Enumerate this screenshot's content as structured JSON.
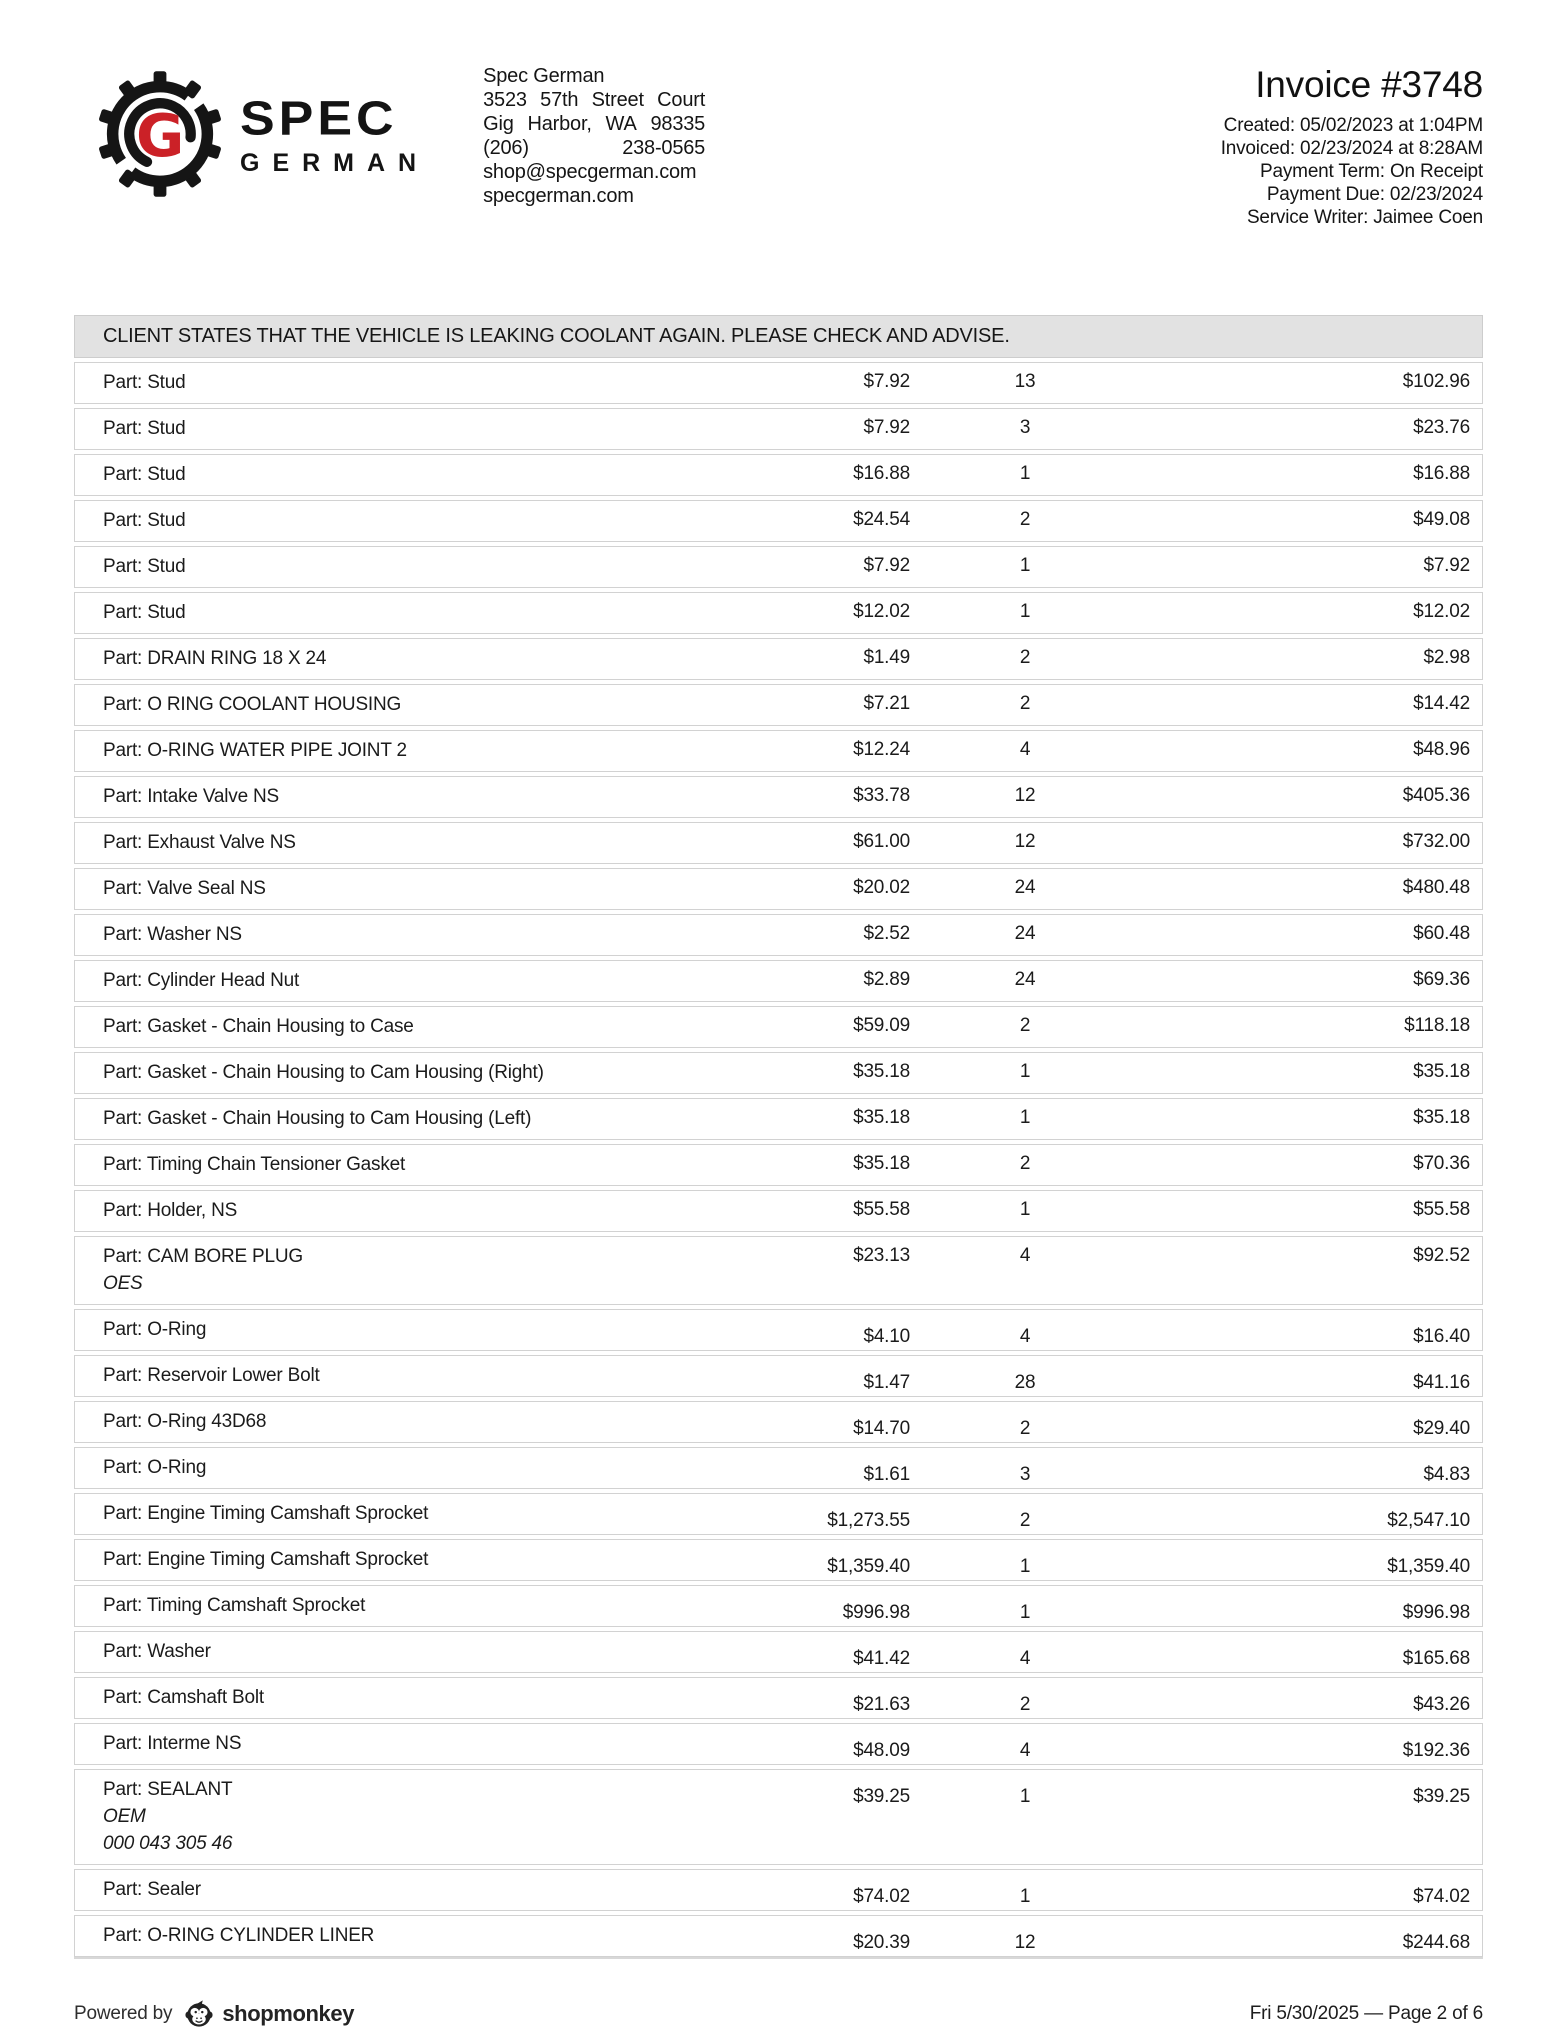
{
  "header": {
    "logo": {
      "monogram": "G",
      "brand_line1": "SPEC",
      "brand_line2": "GERMAN"
    },
    "company": {
      "name": "Spec German",
      "address1": "3523 57th Street Court",
      "address2": "Gig Harbor, WA 98335",
      "phone": "(206) 238-0565",
      "email": "shop@specgerman.com",
      "website": "specgerman.com"
    },
    "invoice": {
      "title": "Invoice #3748",
      "meta_lines": [
        "Created: 05/02/2023 at 1:04PM",
        "Invoiced: 02/23/2024 at 8:28AM",
        "Payment Term: On Receipt",
        "Payment Due: 02/23/2024",
        "Service Writer: Jaimee Coen"
      ]
    }
  },
  "banner": {
    "message": "CLIENT STATES THAT THE VEHICLE IS LEAKING COOLANT AGAIN. PLEASE CHECK AND ADVISE."
  },
  "line_items": [
    {
      "name": "Part: Stud",
      "price": "$7.92",
      "qty": "13",
      "total": "$102.96"
    },
    {
      "name": "Part: Stud",
      "price": "$7.92",
      "qty": "3",
      "total": "$23.76"
    },
    {
      "name": "Part: Stud",
      "price": "$16.88",
      "qty": "1",
      "total": "$16.88"
    },
    {
      "name": "Part: Stud",
      "price": "$24.54",
      "qty": "2",
      "total": "$49.08"
    },
    {
      "name": "Part: Stud",
      "price": "$7.92",
      "qty": "1",
      "total": "$7.92"
    },
    {
      "name": "Part: Stud",
      "price": "$12.02",
      "qty": "1",
      "total": "$12.02"
    },
    {
      "name": "Part: DRAIN RING 18 X 24",
      "price": "$1.49",
      "qty": "2",
      "total": "$2.98"
    },
    {
      "name": "Part: O RING COOLANT HOUSING",
      "price": "$7.21",
      "qty": "2",
      "total": "$14.42"
    },
    {
      "name": "Part: O-RING WATER PIPE JOINT 2",
      "price": "$12.24",
      "qty": "4",
      "total": "$48.96"
    },
    {
      "name": "Part: Intake Valve NS",
      "price": "$33.78",
      "qty": "12",
      "total": "$405.36"
    },
    {
      "name": "Part: Exhaust Valve NS",
      "price": "$61.00",
      "qty": "12",
      "total": "$732.00"
    },
    {
      "name": "Part: Valve Seal NS",
      "price": "$20.02",
      "qty": "24",
      "total": "$480.48"
    },
    {
      "name": "Part: Washer NS",
      "price": "$2.52",
      "qty": "24",
      "total": "$60.48"
    },
    {
      "name": "Part: Cylinder Head Nut",
      "price": "$2.89",
      "qty": "24",
      "total": "$69.36"
    },
    {
      "name": "Part: Gasket - Chain Housing to Case",
      "price": "$59.09",
      "qty": "2",
      "total": "$118.18"
    },
    {
      "name": "Part: Gasket - Chain Housing to Cam Housing (Right)",
      "price": "$35.18",
      "qty": "1",
      "total": "$35.18"
    },
    {
      "name": "Part: Gasket - Chain Housing to Cam Housing (Left)",
      "price": "$35.18",
      "qty": "1",
      "total": "$35.18"
    },
    {
      "name": "Part: Timing Chain Tensioner Gasket",
      "price": "$35.18",
      "qty": "2",
      "total": "$70.36"
    },
    {
      "name": "Part: Holder, NS",
      "price": "$55.58",
      "qty": "1",
      "total": "$55.58"
    },
    {
      "name": "Part: CAM BORE PLUG",
      "sub_lines": [
        "OES"
      ],
      "price": "$23.13",
      "qty": "4",
      "total": "$92.52"
    },
    {
      "name": "Part: O-Ring",
      "price": "$4.10",
      "qty": "4",
      "total": "$16.40"
    },
    {
      "name": "Part: Reservoir Lower Bolt",
      "price": "$1.47",
      "qty": "28",
      "total": "$41.16"
    },
    {
      "name": "Part: O-Ring 43D68",
      "price": "$14.70",
      "qty": "2",
      "total": "$29.40"
    },
    {
      "name": "Part: O-Ring",
      "price": "$1.61",
      "qty": "3",
      "total": "$4.83"
    },
    {
      "name": "Part: Engine Timing Camshaft Sprocket",
      "price": "$1,273.55",
      "qty": "2",
      "total": "$2,547.10"
    },
    {
      "name": "Part: Engine Timing Camshaft Sprocket",
      "price": "$1,359.40",
      "qty": "1",
      "total": "$1,359.40"
    },
    {
      "name": "Part: Timing Camshaft Sprocket",
      "price": "$996.98",
      "qty": "1",
      "total": "$996.98"
    },
    {
      "name": "Part: Washer",
      "price": "$41.42",
      "qty": "4",
      "total": "$165.68"
    },
    {
      "name": "Part: Camshaft Bolt",
      "price": "$21.63",
      "qty": "2",
      "total": "$43.26"
    },
    {
      "name": "Part: Interme NS",
      "price": "$48.09",
      "qty": "4",
      "total": "$192.36"
    },
    {
      "name": "Part: SEALANT",
      "sub_lines": [
        "OEM",
        "000 043 305 46"
      ],
      "price": "$39.25",
      "qty": "1",
      "total": "$39.25"
    },
    {
      "name": "Part: Sealer",
      "price": "$74.02",
      "qty": "1",
      "total": "$74.02"
    },
    {
      "name": "Part: O-RING CYLINDER LINER",
      "price": "$20.39",
      "qty": "12",
      "total": "$244.68"
    }
  ],
  "footer": {
    "powered_by_label": "Powered by",
    "brand_name": "shopmonkey",
    "page_info": "Fri 5/30/2025 — Page 2 of 6"
  },
  "colors": {
    "accent_red": "#cb2127",
    "banner_bg": "#e2e2e2",
    "row_border": "#d2d2d2"
  }
}
